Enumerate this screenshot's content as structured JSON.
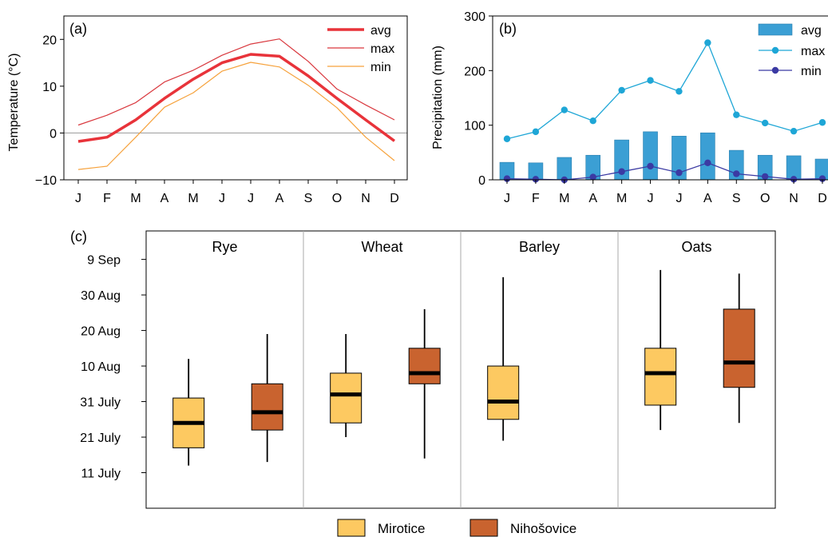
{
  "chart_data": [
    {
      "panel": "(a)",
      "type": "line",
      "ylabel": "Temperature (°C)",
      "xlabel": "",
      "categories": [
        "J",
        "F",
        "M",
        "A",
        "M",
        "J",
        "J",
        "A",
        "S",
        "O",
        "N",
        "D"
      ],
      "ylim": [
        -10,
        25
      ],
      "yticks": [
        -10,
        0,
        10,
        20
      ],
      "ytick_labels": [
        "−10",
        "0",
        "10",
        "20"
      ],
      "zero_line": true,
      "legend_position": "top-right",
      "series": [
        {
          "name": "avg",
          "color": "#e8333a",
          "width": 3.5,
          "values": [
            -1.8,
            -0.9,
            2.8,
            7.4,
            11.5,
            15.0,
            16.8,
            16.4,
            12.2,
            7.4,
            2.8,
            -1.7
          ]
        },
        {
          "name": "max",
          "color": "#d9383e",
          "width": 1.2,
          "values": [
            1.7,
            3.8,
            6.5,
            10.9,
            13.4,
            16.6,
            19.0,
            20.1,
            15.3,
            9.4,
            6.0,
            2.8
          ]
        },
        {
          "name": "min",
          "color": "#f6a23c",
          "width": 1.2,
          "values": [
            -7.8,
            -7.1,
            -0.9,
            5.5,
            8.6,
            13.2,
            15.1,
            14.1,
            10.2,
            5.4,
            -0.9,
            -5.9
          ]
        }
      ]
    },
    {
      "panel": "(b)",
      "type": "bar",
      "ylabel": "Precipitation (mm)",
      "xlabel": "",
      "categories": [
        "J",
        "F",
        "M",
        "A",
        "M",
        "J",
        "J",
        "A",
        "S",
        "O",
        "N",
        "D"
      ],
      "ylim": [
        0,
        300
      ],
      "yticks": [
        0,
        100,
        200,
        300
      ],
      "legend_position": "top-right",
      "series": [
        {
          "name": "avg",
          "kind": "bar",
          "color": "#3b9fd4",
          "values": [
            32,
            31,
            41,
            45,
            73,
            88,
            80,
            86,
            54,
            45,
            44,
            38
          ]
        },
        {
          "name": "max",
          "kind": "line",
          "color": "#1ea6d6",
          "values": [
            75,
            88,
            128,
            108,
            164,
            182,
            162,
            251,
            119,
            104,
            89,
            105
          ]
        },
        {
          "name": "min",
          "kind": "line",
          "color": "#3b3aa3",
          "values": [
            2,
            1,
            0,
            5,
            15,
            25,
            13,
            31,
            11,
            6,
            1,
            2
          ]
        }
      ]
    },
    {
      "panel": "(c)",
      "type": "box",
      "xlabel": "",
      "ylabel": "",
      "ytick_labels": [
        "11 July",
        "21 July",
        "31 July",
        "10 Aug",
        "20 Aug",
        "30 Aug",
        "9 Sep"
      ],
      "ytick_days": [
        0,
        10,
        20,
        30,
        40,
        50,
        60
      ],
      "y_unit": "days after 11 July",
      "ylim": [
        -10,
        68
      ],
      "groups": [
        "Rye",
        "Wheat",
        "Barley",
        "Oats"
      ],
      "series": [
        {
          "name": "Mirotice",
          "color": "#fdc961",
          "boxes": [
            {
              "whisker_low": 2,
              "q1": 7,
              "median": 14,
              "q3": 21,
              "whisker_high": 32
            },
            {
              "whisker_low": 10,
              "q1": 14,
              "median": 22,
              "q3": 28,
              "whisker_high": 39
            },
            {
              "whisker_low": 9,
              "q1": 15,
              "median": 20,
              "q3": 30,
              "whisker_high": 55
            },
            {
              "whisker_low": 12,
              "q1": 19,
              "median": 28,
              "q3": 35,
              "whisker_high": 57
            }
          ]
        },
        {
          "name": "Nihošovice",
          "color": "#c9632f",
          "boxes": [
            {
              "whisker_low": 3,
              "q1": 12,
              "median": 17,
              "q3": 25,
              "whisker_high": 39
            },
            {
              "whisker_low": 4,
              "q1": 25,
              "median": 28,
              "q3": 35,
              "whisker_high": 46
            },
            null,
            {
              "whisker_low": 14,
              "q1": 24,
              "median": 31,
              "q3": 46,
              "whisker_high": 56
            }
          ]
        }
      ]
    }
  ]
}
